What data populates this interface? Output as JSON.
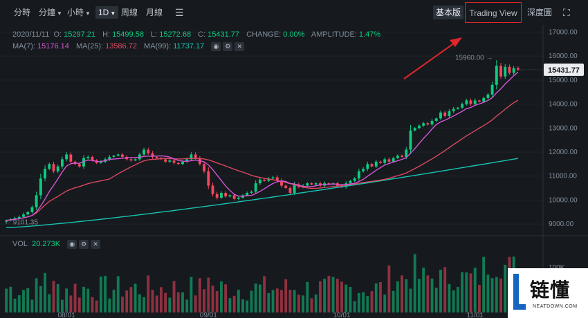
{
  "toolbar": {
    "items": [
      {
        "label": "分時"
      },
      {
        "label": "分鐘"
      },
      {
        "label": "小時"
      },
      {
        "label": "1D"
      },
      {
        "label": "周線"
      },
      {
        "label": "月線"
      }
    ],
    "settings_icon": "sliders-icon",
    "right": {
      "basic": "基本版",
      "trading_view": "Trading View",
      "depth": "深度圖",
      "fullscreen_icon": "fullscreen-icon"
    }
  },
  "ohlc": {
    "date": "2020/11/11",
    "o_label": "O:",
    "o": "15297.21",
    "h_label": "H:",
    "h": "15499.58",
    "l_label": "L:",
    "l": "15272.68",
    "c_label": "C:",
    "c": "15431.77",
    "change_label": "CHANGE:",
    "change": "0.00%",
    "amplitude_label": "AMPLITUDE:",
    "amplitude": "1.47%"
  },
  "ma": {
    "ma7_label": "MA(7):",
    "ma7": "15176.14",
    "ma25_label": "MA(25):",
    "ma25": "13586.72",
    "ma99_label": "MA(99):",
    "ma99": "11737.17"
  },
  "volume": {
    "label": "VOL",
    "value": "20.273K"
  },
  "price_axis": [
    "17000.00",
    "16000.00",
    "15000.00",
    "14000.00",
    "13000.00",
    "12000.00",
    "11000.00",
    "10000.00",
    "9000.00"
  ],
  "date_axis": [
    "08/01",
    "09/01",
    "10/01",
    "11/01"
  ],
  "vol_axis": [
    "100K"
  ],
  "markers": {
    "high": "15960.00",
    "low": "9101.35",
    "last": "15431.77"
  },
  "colors": {
    "up": "#0ecb81",
    "down": "#f6465d",
    "ma7": "#d455d6",
    "ma25": "#d9475f",
    "ma99": "#17c3b2",
    "highlight": "#e0262b"
  },
  "watermark": {
    "text": "链懂",
    "sub": "NEATDOWN.COM"
  },
  "chart_data": {
    "type": "candlestick",
    "ylim": [
      8600,
      17300
    ],
    "series_daily_close_approx": [
      9150,
      9200,
      9250,
      9300,
      9400,
      9500,
      9700,
      10200,
      10900,
      11300,
      11500,
      11200,
      11400,
      11700,
      11900,
      11600,
      11500,
      11400,
      11750,
      11800,
      11650,
      11550,
      11600,
      11700,
      11800,
      11850,
      11900,
      11800,
      11700,
      11650,
      11700,
      11900,
      12100,
      11950,
      11800,
      11750,
      11700,
      11600,
      11650,
      11550,
      11500,
      11600,
      11700,
      11900,
      11750,
      11500,
      11200,
      10600,
      10250,
      10100,
      10300,
      10150,
      10200,
      10050,
      10100,
      10200,
      10300,
      10350,
      10700,
      10850,
      10800,
      10900,
      10950,
      10800,
      10600,
      10500,
      10300,
      10650,
      10550,
      10600,
      10700,
      10650,
      10700,
      10600,
      10700,
      10650,
      10700,
      10600,
      10550,
      10700,
      10800,
      10900,
      11200,
      11300,
      11500,
      11400,
      11600,
      11550,
      11700,
      11600,
      11750,
      11850,
      11800,
      12100,
      12900,
      13000,
      13100,
      13200,
      13150,
      13300,
      13400,
      13650,
      13500,
      13700,
      13800,
      13850,
      14000,
      14150,
      14000,
      14150,
      14100,
      14250,
      14400,
      14800,
      15600,
      15150,
      15550,
      15300,
      15500,
      15431.77
    ]
  }
}
